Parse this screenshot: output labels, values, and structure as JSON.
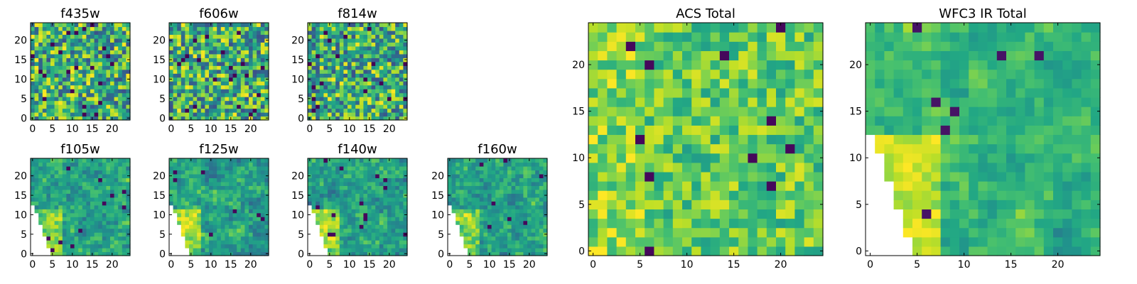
{
  "chart_data": [
    {
      "type": "heatmap",
      "title": "f435w",
      "x_ticks": [
        0,
        5,
        10,
        15,
        20
      ],
      "y_ticks": [
        0,
        5,
        10,
        15,
        20
      ],
      "xlim": [
        0,
        25
      ],
      "ylim": [
        0,
        25
      ],
      "grid": false,
      "colormap": "viridis",
      "pattern": "noise",
      "seed": 11
    },
    {
      "type": "heatmap",
      "title": "f606w",
      "x_ticks": [
        0,
        5,
        10,
        15,
        20
      ],
      "y_ticks": [
        0,
        5,
        10,
        15,
        20
      ],
      "xlim": [
        0,
        25
      ],
      "ylim": [
        0,
        25
      ],
      "grid": false,
      "colormap": "viridis",
      "pattern": "noise",
      "seed": 23
    },
    {
      "type": "heatmap",
      "title": "f814w",
      "x_ticks": [
        0,
        5,
        10,
        15,
        20
      ],
      "y_ticks": [
        0,
        5,
        10,
        15,
        20
      ],
      "xlim": [
        0,
        25
      ],
      "ylim": [
        0,
        25
      ],
      "grid": false,
      "colormap": "viridis",
      "pattern": "noise",
      "seed": 37
    },
    {
      "type": "heatmap",
      "title": "f105w",
      "x_ticks": [
        0,
        5,
        10,
        15,
        20
      ],
      "y_ticks": [
        0,
        5,
        10,
        15,
        20
      ],
      "xlim": [
        0,
        25
      ],
      "ylim": [
        0,
        25
      ],
      "grid": false,
      "colormap": "viridis",
      "pattern": "ir",
      "seed": 41
    },
    {
      "type": "heatmap",
      "title": "f125w",
      "x_ticks": [
        0,
        5,
        10,
        15,
        20
      ],
      "y_ticks": [
        0,
        5,
        10,
        15,
        20
      ],
      "xlim": [
        0,
        25
      ],
      "ylim": [
        0,
        25
      ],
      "grid": false,
      "colormap": "viridis",
      "pattern": "ir",
      "seed": 53
    },
    {
      "type": "heatmap",
      "title": "f140w",
      "x_ticks": [
        0,
        5,
        10,
        15,
        20
      ],
      "y_ticks": [
        0,
        5,
        10,
        15,
        20
      ],
      "xlim": [
        0,
        25
      ],
      "ylim": [
        0,
        25
      ],
      "grid": false,
      "colormap": "viridis",
      "pattern": "ir",
      "seed": 67
    },
    {
      "type": "heatmap",
      "title": "f160w",
      "x_ticks": [
        0,
        5,
        10,
        15,
        20
      ],
      "y_ticks": [
        0,
        5,
        10,
        15,
        20
      ],
      "xlim": [
        0,
        25
      ],
      "ylim": [
        0,
        25
      ],
      "grid": false,
      "colormap": "viridis",
      "pattern": "ir",
      "seed": 79
    },
    {
      "type": "heatmap",
      "title": "ACS Total",
      "x_ticks": [
        0,
        5,
        10,
        15,
        20
      ],
      "y_ticks": [
        0,
        5,
        10,
        15,
        20
      ],
      "xlim": [
        0,
        25
      ],
      "ylim": [
        0,
        25
      ],
      "grid": false,
      "colormap": "viridis",
      "pattern": "acs",
      "seed": 97
    },
    {
      "type": "heatmap",
      "title": "WFC3 IR Total",
      "x_ticks": [
        0,
        5,
        10,
        15,
        20
      ],
      "y_ticks": [
        0,
        5,
        10,
        15,
        20
      ],
      "xlim": [
        0,
        25
      ],
      "ylim": [
        0,
        25
      ],
      "grid": false,
      "colormap": "viridis",
      "pattern": "irtotal",
      "seed": 131
    }
  ]
}
